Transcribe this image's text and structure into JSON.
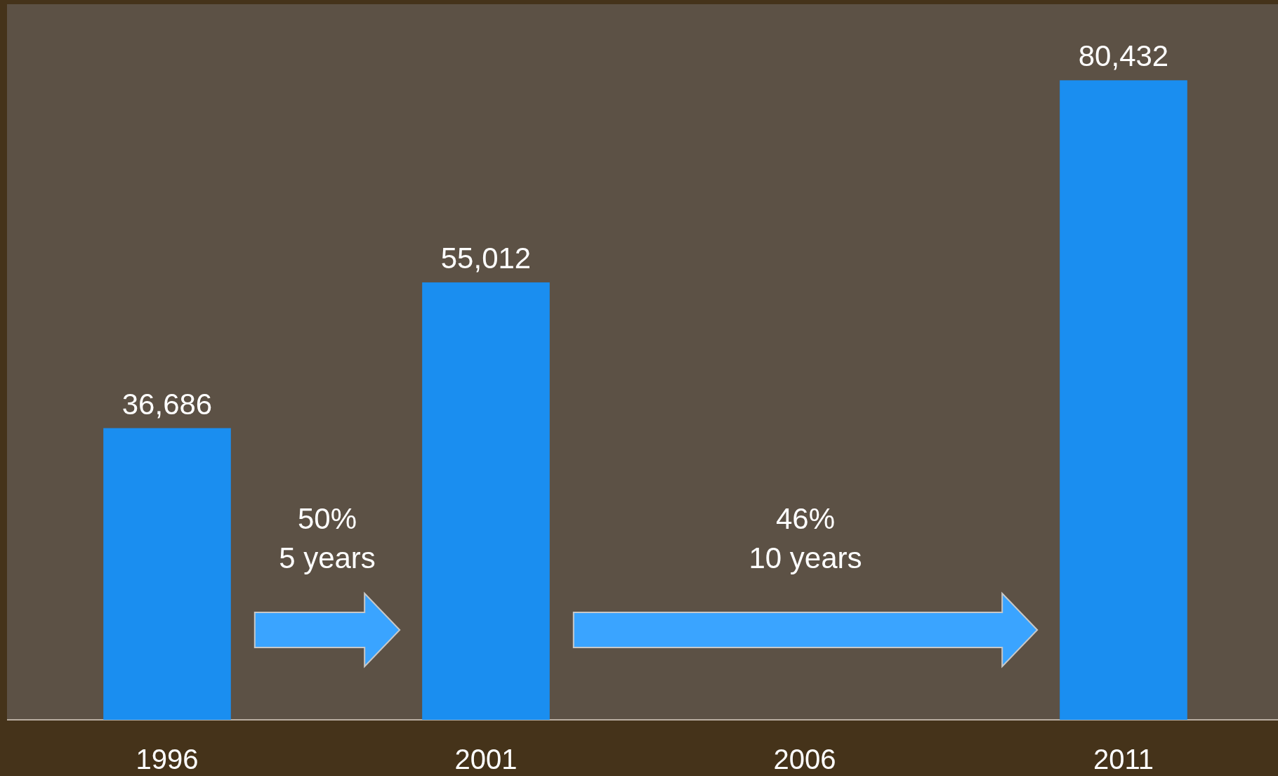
{
  "chart_data": {
    "type": "bar",
    "categories": [
      "1996",
      "2001",
      "2006",
      "2011"
    ],
    "values": [
      36686,
      55012,
      null,
      80432
    ],
    "color": "#1a8ef0",
    "ylim": [
      0,
      90000
    ],
    "tick_labels": "x",
    "data_labels": true,
    "value_labels": [
      "36,686",
      "55,012",
      null,
      "80,432"
    ],
    "annotations": [
      "50%\n5 years",
      "46%\n10 years"
    ]
  }
}
